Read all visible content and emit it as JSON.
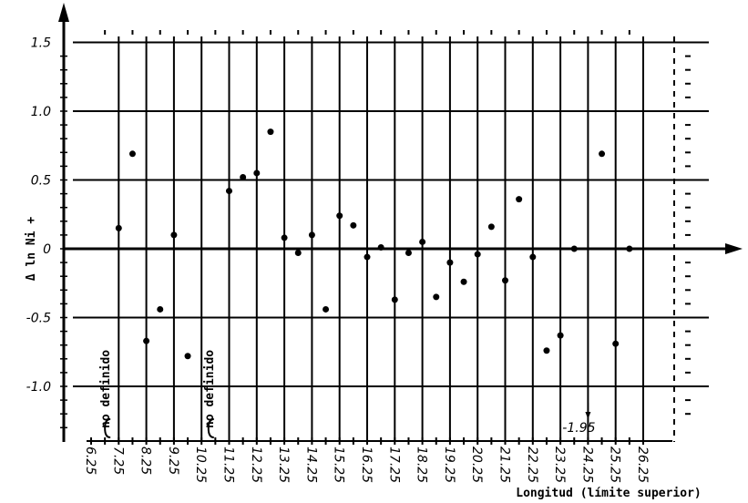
{
  "chart_data": {
    "type": "scatter",
    "title": "",
    "xlabel": "Longitud (límite superior)",
    "ylabel": "Δ ln Ni +",
    "xlim": [
      6.25,
      26.25
    ],
    "ylim": [
      -1.3,
      1.65
    ],
    "grid": true,
    "x_ticks": [
      "6.25",
      "7.25",
      "8.25",
      "9.25",
      "10.25",
      "11.25",
      "12.25",
      "13.25",
      "14.25",
      "15.25",
      "16.25",
      "17.25",
      "18.25",
      "19.25",
      "20.25",
      "21.25",
      "22.25",
      "23.25",
      "24.25",
      "25.25",
      "26.25"
    ],
    "y_ticks": [
      "1.5",
      "1.0",
      "0.5",
      "0",
      "-0.5",
      "-1.0"
    ],
    "y_tick_values": [
      1.5,
      1.0,
      0.5,
      0,
      -0.5,
      -1.0
    ],
    "annotations": [
      {
        "text": "no definido",
        "x": 6.75
      },
      {
        "text": "no definido",
        "x": 10.5
      },
      {
        "text": "-1.95",
        "x": 24.25,
        "note_arrow": "down"
      }
    ],
    "points": [
      [
        7.25,
        0.15
      ],
      [
        7.75,
        0.69
      ],
      [
        8.25,
        -0.67
      ],
      [
        8.75,
        -0.44
      ],
      [
        9.25,
        0.1
      ],
      [
        9.75,
        -0.78
      ],
      [
        11.25,
        0.42
      ],
      [
        11.75,
        0.52
      ],
      [
        12.25,
        0.55
      ],
      [
        12.75,
        0.85
      ],
      [
        13.25,
        0.08
      ],
      [
        13.75,
        -0.03
      ],
      [
        14.25,
        0.1
      ],
      [
        14.75,
        -0.44
      ],
      [
        15.25,
        0.24
      ],
      [
        15.75,
        0.17
      ],
      [
        16.25,
        -0.06
      ],
      [
        16.75,
        0.01
      ],
      [
        17.25,
        -0.37
      ],
      [
        17.75,
        -0.03
      ],
      [
        18.25,
        0.05
      ],
      [
        18.75,
        -0.35
      ],
      [
        19.25,
        -0.1
      ],
      [
        19.75,
        -0.24
      ],
      [
        20.25,
        -0.04
      ],
      [
        20.75,
        0.16
      ],
      [
        21.25,
        -0.23
      ],
      [
        21.75,
        0.36
      ],
      [
        22.25,
        -0.06
      ],
      [
        22.75,
        -0.74
      ],
      [
        23.25,
        -0.63
      ],
      [
        23.75,
        0.0
      ],
      [
        24.75,
        0.69
      ],
      [
        25.25,
        -0.69
      ],
      [
        25.75,
        0.0
      ]
    ]
  }
}
